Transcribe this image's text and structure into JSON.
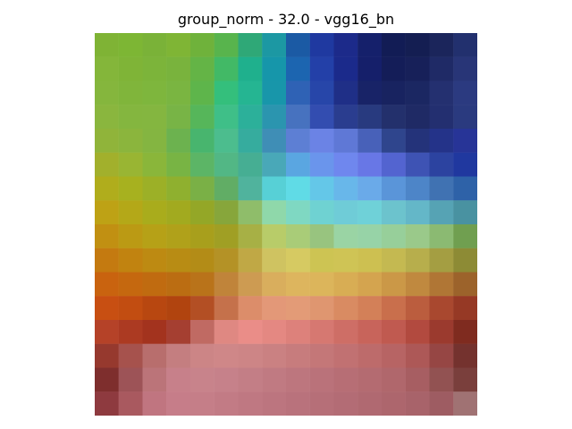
{
  "figure": {
    "title": "group_norm - 32.0 - vgg16_bn"
  },
  "chart_data": {
    "type": "heatmap",
    "title": "group_norm - 32.0 - vgg16_bn",
    "xlabel": "",
    "ylabel": "",
    "axes_visible": false,
    "grid": false,
    "legend": "none",
    "rows": 16,
    "cols": 16,
    "render_mode": "pixelated-image",
    "colors": [
      [
        "#7fb335",
        "#7db634",
        "#7ab238",
        "#7fb535",
        "#6fb23b",
        "#58b44d",
        "#2fa877",
        "#1c98a3",
        "#1b5aa4",
        "#1f39a0",
        "#1c2a8a",
        "#15206b",
        "#121c55",
        "#141e52",
        "#1b255b",
        "#22306e"
      ],
      [
        "#84b63a",
        "#7fb437",
        "#7cb43a",
        "#79b33d",
        "#64b446",
        "#42b966",
        "#1fb08d",
        "#1696aa",
        "#1c65b0",
        "#2340a8",
        "#1b2a8b",
        "#151f6a",
        "#141d58",
        "#172059",
        "#1f2a66",
        "#283577"
      ],
      [
        "#85b63d",
        "#80b53b",
        "#7eb63d",
        "#7ab541",
        "#5eb54b",
        "#34bf7c",
        "#25b592",
        "#1896aa",
        "#2f62b5",
        "#2746a9",
        "#1f2f87",
        "#182367",
        "#182360",
        "#1b2762",
        "#243070",
        "#2b3a80"
      ],
      [
        "#8ab63e",
        "#84b63f",
        "#84b640",
        "#78b446",
        "#56b65a",
        "#3fbf88",
        "#2cb09a",
        "#2b95af",
        "#4772bf",
        "#334db0",
        "#2a3d8f",
        "#283a7f",
        "#23306c",
        "#1f2a65",
        "#232f70",
        "#2a3a7f"
      ],
      [
        "#90b43a",
        "#8bb53d",
        "#84b541",
        "#6cb24f",
        "#48b56e",
        "#4cbd8e",
        "#36ac9e",
        "#3f8eb6",
        "#5d7fd4",
        "#6b83e5",
        "#5f78d6",
        "#4861b9",
        "#2f458d",
        "#24337a",
        "#243389",
        "#273497"
      ],
      [
        "#a2b02c",
        "#99b533",
        "#8ab63a",
        "#78b444",
        "#5cb566",
        "#52b785",
        "#46ae93",
        "#49a8b8",
        "#5aa6e1",
        "#6a95ec",
        "#6f87ee",
        "#6877e6",
        "#5364d0",
        "#3e53b4",
        "#2c43a0",
        "#20389f"
      ],
      [
        "#b0ad1c",
        "#a7b11f",
        "#9cb027",
        "#8fb02f",
        "#7ab046",
        "#61ad65",
        "#50b39d",
        "#57d0d6",
        "#60dbe6",
        "#64c7e8",
        "#68b7ea",
        "#6aaae9",
        "#5a95d9",
        "#4d85c8",
        "#4072b2",
        "#2e62a8"
      ],
      [
        "#bea215",
        "#b4a818",
        "#a9ac1c",
        "#a2aa1f",
        "#94a727",
        "#87a63b",
        "#8fbd6a",
        "#8fd8aa",
        "#7fd8c2",
        "#6fd2d2",
        "#6fccd7",
        "#6fd1d8",
        "#6cc3cd",
        "#64b7c8",
        "#56a3b4",
        "#4992a1"
      ],
      [
        "#c19012",
        "#bb9a14",
        "#b6a117",
        "#b0a11a",
        "#a89f1c",
        "#a09f24",
        "#a7b045",
        "#b8cc69",
        "#a9cc78",
        "#98c47f",
        "#9ad4a4",
        "#97d3a7",
        "#97cf9a",
        "#9ac98a",
        "#8bba72",
        "#709f50"
      ],
      [
        "#c47a10",
        "#c18310",
        "#bd8a12",
        "#b88c14",
        "#b38c17",
        "#b49226",
        "#c0a845",
        "#cfc361",
        "#d6ca62",
        "#cdc453",
        "#cfc455",
        "#cdc051",
        "#c4b951",
        "#b7ae4c",
        "#a49e42",
        "#8d8b35"
      ],
      [
        "#c9630f",
        "#c5680f",
        "#c06b10",
        "#bb6d12",
        "#b9731a",
        "#c0843a",
        "#cd9b52",
        "#d9ae5d",
        "#ddb55e",
        "#dcb55b",
        "#d8ad54",
        "#d4a44f",
        "#cb9847",
        "#c0893f",
        "#b07635",
        "#9c632b"
      ],
      [
        "#c84f12",
        "#c24d11",
        "#b84710",
        "#b1440f",
        "#b34f24",
        "#c5714b",
        "#dc8d6a",
        "#e39878",
        "#e39b77",
        "#df9670",
        "#d98b62",
        "#d38058",
        "#c96f4c",
        "#bb5d3e",
        "#a9482f",
        "#963925"
      ],
      [
        "#b54228",
        "#ac3a22",
        "#a3331e",
        "#a53f31",
        "#c06a63",
        "#df8882",
        "#ea8d88",
        "#e48882",
        "#dd817b",
        "#d67871",
        "#ce6e66",
        "#c8645b",
        "#c05a50",
        "#b24a3f",
        "#9b3a2e",
        "#7f2b1f"
      ],
      [
        "#96392e",
        "#a6524d",
        "#b86e6d",
        "#c47e80",
        "#cc8586",
        "#cf8788",
        "#cd8586",
        "#ca8182",
        "#c77c7d",
        "#c47778",
        "#c17172",
        "#bd6b6b",
        "#b76464",
        "#ad5857",
        "#964644",
        "#74322e"
      ],
      [
        "#7e2e2d",
        "#9d5357",
        "#bb7479",
        "#c7808a",
        "#c8838b",
        "#c6818a",
        "#c37e86",
        "#c07a82",
        "#bd767e",
        "#ba727a",
        "#b76e75",
        "#b46b71",
        "#b0676c",
        "#a75e62",
        "#925252",
        "#7a3f3c"
      ],
      [
        "#8e3a3f",
        "#a9595f",
        "#c07580",
        "#c67d89",
        "#c57e88",
        "#c27b85",
        "#bf7882",
        "#bc757f",
        "#b9727c",
        "#b66f78",
        "#b36c75",
        "#b06971",
        "#ad666d",
        "#a8636a",
        "#9e5c62",
        "#a07273"
      ]
    ]
  }
}
